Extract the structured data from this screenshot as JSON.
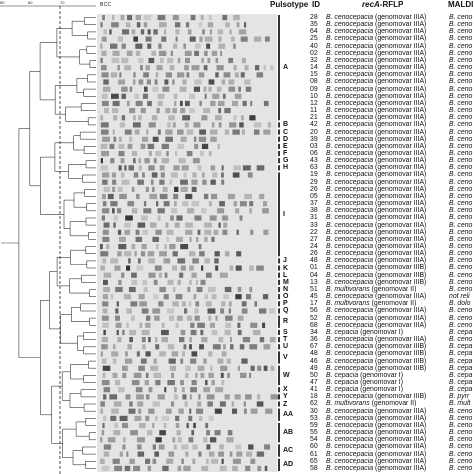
{
  "headers": {
    "pulsotype": "Pulsotype",
    "id": "ID",
    "recA_italic": "recA",
    "recA_rest": "-RFLP",
    "maldi": "MALDI",
    "bcc": "BCC",
    "scale_a": "50",
    "scale_b": "60",
    "scale_c": "70"
  },
  "rows": [
    {
      "id": "28",
      "species": "B. cenocepacia",
      "group": "(genomovar IIIA)",
      "maldi": "B. ceno"
    },
    {
      "id": "35",
      "species": "B. cenocepacia",
      "group": "(genomovar IIIA)",
      "maldi": "B. ceno"
    },
    {
      "id": "64",
      "species": "B. cenocepacia",
      "group": "(genomovar IIIA)",
      "maldi": "B. ceno"
    },
    {
      "id": "25",
      "species": "B. cenocepacia",
      "group": "(genomovar IIIA)",
      "maldi": "B. ceno"
    },
    {
      "id": "40",
      "species": "B. cenocepacia",
      "group": "(genomovar IIIA)",
      "maldi": "B. ceno"
    },
    {
      "id": "02",
      "species": "B. cenocepacia",
      "group": "(genomovar IIIA)",
      "maldi": "B. ceno"
    },
    {
      "id": "32",
      "species": "B. cenocepacia",
      "group": "(genomovar IIIA)",
      "maldi": "B. ceno"
    },
    {
      "id": "14",
      "species": "B. cenocepacia",
      "group": "(genomovar IIIA)",
      "maldi": "B. ceno"
    },
    {
      "id": "15",
      "species": "B. cenocepacia",
      "group": "(genomovar IIIA)",
      "maldi": "B. ceno"
    },
    {
      "id": "08",
      "species": "B. cenocepacia",
      "group": "(genomovar IIIA)",
      "maldi": "B. ceno"
    },
    {
      "id": "09",
      "species": "B. cenocepacia",
      "group": "(genomovar IIIA)",
      "maldi": "B. ceno"
    },
    {
      "id": "10",
      "species": "B. cenocepacia",
      "group": "(genomovar IIIA)",
      "maldi": "B. ceno"
    },
    {
      "id": "12",
      "species": "B. cenocepacia",
      "group": "(genomovar IIIA)",
      "maldi": "B. ceno"
    },
    {
      "id": "11",
      "species": "B. cenocepacia",
      "group": "(genomovar IIIA)",
      "maldi": "B. ceno"
    },
    {
      "id": "21",
      "species": "B. cenocepacia",
      "group": "(genomovar IIIA)",
      "maldi": "B. ceno"
    },
    {
      "id": "42",
      "species": "B. cenocepacia",
      "group": "(genomovar IIIA)",
      "maldi": "B. ceno"
    },
    {
      "id": "20",
      "species": "B. cenocepacia",
      "group": "(genomovar IIIA)",
      "maldi": "B. ceno"
    },
    {
      "id": "39",
      "species": "B. cenocepacia",
      "group": "(genomovar IIIA)",
      "maldi": "B. ceno"
    },
    {
      "id": "03",
      "species": "B. cenocepacia",
      "group": "(genomovar IIIA)",
      "maldi": "B. ceno"
    },
    {
      "id": "06",
      "species": "B. cenocepacia",
      "group": "(genomovar IIIA)",
      "maldi": "B. ceno"
    },
    {
      "id": "43",
      "species": "B. cenocepacia",
      "group": "(genomovar IIIA)",
      "maldi": "B. ceno"
    },
    {
      "id": "63",
      "species": "B. cenocepacia",
      "group": "(genomovar IIIA)",
      "maldi": "B. ceno"
    },
    {
      "id": "19",
      "species": "B. cenocepacia",
      "group": "(genomovar IIIA)",
      "maldi": "B. ceno"
    },
    {
      "id": "29",
      "species": "B. cenocepacia",
      "group": "(genomovar IIIA)",
      "maldi": "B. ceno"
    },
    {
      "id": "26",
      "species": "B. cenocepacia",
      "group": "(genomovar IIIA)",
      "maldi": "B. ceno"
    },
    {
      "id": "05",
      "species": "B. cenocepacia",
      "group": "(genomovar IIIA)",
      "maldi": "B. ceno"
    },
    {
      "id": "37",
      "species": "B. cenocepacia",
      "group": "(genomovar IIIA)",
      "maldi": "B. ceno"
    },
    {
      "id": "38",
      "species": "B. cenocepacia",
      "group": "(genomovar IIIA)",
      "maldi": "B. ceno"
    },
    {
      "id": "31",
      "species": "B. cenocepacia",
      "group": "(genomovar IIIA)",
      "maldi": "B. ceno"
    },
    {
      "id": "33",
      "species": "B. cenocepacia",
      "group": "(genomovar IIIA)",
      "maldi": "B. ceno"
    },
    {
      "id": "22",
      "species": "B. cenocepacia",
      "group": "(genomovar IIIA)",
      "maldi": "B. ceno"
    },
    {
      "id": "27",
      "species": "B. cenocepacia",
      "group": "(genomovar IIIA)",
      "maldi": "B. ceno"
    },
    {
      "id": "24",
      "species": "B. cenocepacia",
      "group": "(genomovar IIIA)",
      "maldi": "B. ceno"
    },
    {
      "id": "26",
      "species": "B. cenocepacia",
      "group": "(genomovar IIIA)",
      "maldi": "B. ceno"
    },
    {
      "id": "48",
      "species": "B. cenocepacia",
      "group": "(genomovar IIIA)",
      "maldi": "B. ceno"
    },
    {
      "id": "01",
      "species": "B. cenocepacia",
      "group": "(genomovar IIIB)",
      "maldi": "B. ceno"
    },
    {
      "id": "04",
      "species": "B. cenocepacia",
      "group": "(genomovar IIIB)",
      "maldi": "B. ceno"
    },
    {
      "id": "13",
      "species": "B. cenocepacia",
      "group": "(genomovar IIIB)",
      "maldi": "B. ceno"
    },
    {
      "id": "51",
      "species": "B. multivorans",
      "group": "(genomovar II)",
      "maldi": "B. ceno"
    },
    {
      "id": "45",
      "species": "B. cenocepacia",
      "group": "(genomovar IIIA)",
      "maldi": "not reli"
    },
    {
      "id": "17",
      "species": "B. multivorans",
      "group": "(genomovar II)",
      "maldi": "B. dolo"
    },
    {
      "id": "56",
      "species": "B. cenocepacia",
      "group": "(genomovar IIIA)",
      "maldi": "B. ceno"
    },
    {
      "id": "52",
      "species": "B. cenocepacia",
      "group": "(genomovar IIIA)",
      "maldi": "B. ceno"
    },
    {
      "id": "68",
      "species": "B. cenocepacia",
      "group": "(genomovar IIIA)",
      "maldi": "B. ceno"
    },
    {
      "id": "34",
      "species": "B. cepacia",
      "group": "(genomovar I)",
      "maldi": "B. cepa"
    },
    {
      "id": "36",
      "species": "B. cenocepacia",
      "group": "(genomovar IIIA)",
      "maldi": "B. ceno"
    },
    {
      "id": "67",
      "species": "B. cenocepacia",
      "group": "(genomovar IIIB)",
      "maldi": "B. cepa"
    },
    {
      "id": "48",
      "species": "B. cenocepacia",
      "group": "(genomovar IIIB)",
      "maldi": "B. cepa"
    },
    {
      "id": "46",
      "species": "B. cenocepacia",
      "group": "(genomovar IIIB)",
      "maldi": "B. cepa"
    },
    {
      "id": "49",
      "species": "B. cenocepacia",
      "group": "(genomovar IIIB)",
      "maldi": "B. cepa"
    },
    {
      "id": "50",
      "species": "B. cepacia",
      "group": "(genomovar I)",
      "maldi": "B. cepa"
    },
    {
      "id": "47",
      "species": "B. cepacia",
      "group": "(genomovar I)",
      "maldi": "B. cepa"
    },
    {
      "id": "41",
      "species": "B. cepacia",
      "group": "(genomovar I)",
      "maldi": "B. cepa"
    },
    {
      "id": "18",
      "species": "B. cenocepacia",
      "group": "(genomovar IIIB)",
      "maldi": "B. pyrr"
    },
    {
      "id": "62",
      "species": "B. multivorans",
      "group": "(genomovar II)",
      "maldi": "B. mult"
    },
    {
      "id": "30",
      "species": "B. cenocepacia",
      "group": "(genomovar IIIA)",
      "maldi": "B. ceno"
    },
    {
      "id": "53",
      "species": "B. cenocepacia",
      "group": "(genomovar IIIA)",
      "maldi": "B. ceno"
    },
    {
      "id": "59",
      "species": "B. cenocepacia",
      "group": "(genomovar IIIA)",
      "maldi": "B. ceno"
    },
    {
      "id": "55",
      "species": "B. cenocepacia",
      "group": "(genomovar IIIA)",
      "maldi": "B. ceno"
    },
    {
      "id": "54",
      "species": "B. cenocepacia",
      "group": "(genomovar IIIA)",
      "maldi": "B. ceno"
    },
    {
      "id": "60",
      "species": "B. cenocepacia",
      "group": "(genomovar IIIA)",
      "maldi": "B. ceno"
    },
    {
      "id": "61",
      "species": "B. cenocepacia",
      "group": "(genomovar IIIA)",
      "maldi": "B. ceno"
    },
    {
      "id": "65",
      "species": "B. cenocepacia",
      "group": "(genomovar IIIA)",
      "maldi": "B. ceno"
    },
    {
      "id": "58",
      "species": "B. cenocepacia",
      "group": "(genomovar IIIA)",
      "maldi": "B. ceno"
    }
  ],
  "pulsotypes": [
    {
      "label": "A",
      "start": 0,
      "end": 14
    },
    {
      "label": "B",
      "start": 15,
      "end": 15
    },
    {
      "label": "C",
      "start": 16,
      "end": 16
    },
    {
      "label": "D",
      "start": 17,
      "end": 17
    },
    {
      "label": "E",
      "start": 18,
      "end": 18
    },
    {
      "label": "F",
      "start": 19,
      "end": 19
    },
    {
      "label": "G",
      "start": 20,
      "end": 20
    },
    {
      "label": "H",
      "start": 21,
      "end": 21
    },
    {
      "label": "I",
      "start": 22,
      "end": 33
    },
    {
      "label": "J",
      "start": 34,
      "end": 34
    },
    {
      "label": "K",
      "start": 35,
      "end": 35
    },
    {
      "label": "L",
      "start": 36,
      "end": 36
    },
    {
      "label": "M",
      "start": 37,
      "end": 37
    },
    {
      "label": "N",
      "start": 38,
      "end": 38
    },
    {
      "label": "O",
      "start": 39,
      "end": 39
    },
    {
      "label": "P",
      "start": 40,
      "end": 40
    },
    {
      "label": "Q",
      "start": 41,
      "end": 41
    },
    {
      "label": "R",
      "start": 42,
      "end": 43
    },
    {
      "label": "S",
      "start": 44,
      "end": 44
    },
    {
      "label": "T",
      "start": 45,
      "end": 45
    },
    {
      "label": "U",
      "start": 46,
      "end": 46
    },
    {
      "label": "V",
      "start": 47,
      "end": 48
    },
    {
      "label": "W",
      "start": 49,
      "end": 51
    },
    {
      "label": "X",
      "start": 52,
      "end": 52
    },
    {
      "label": "Y",
      "start": 53,
      "end": 53
    },
    {
      "label": "Z",
      "start": 54,
      "end": 54
    },
    {
      "label": "AA",
      "start": 55,
      "end": 56
    },
    {
      "label": "AB",
      "start": 57,
      "end": 59
    },
    {
      "label": "AC",
      "start": 60,
      "end": 61
    },
    {
      "label": "AD",
      "start": 62,
      "end": 63
    }
  ]
}
